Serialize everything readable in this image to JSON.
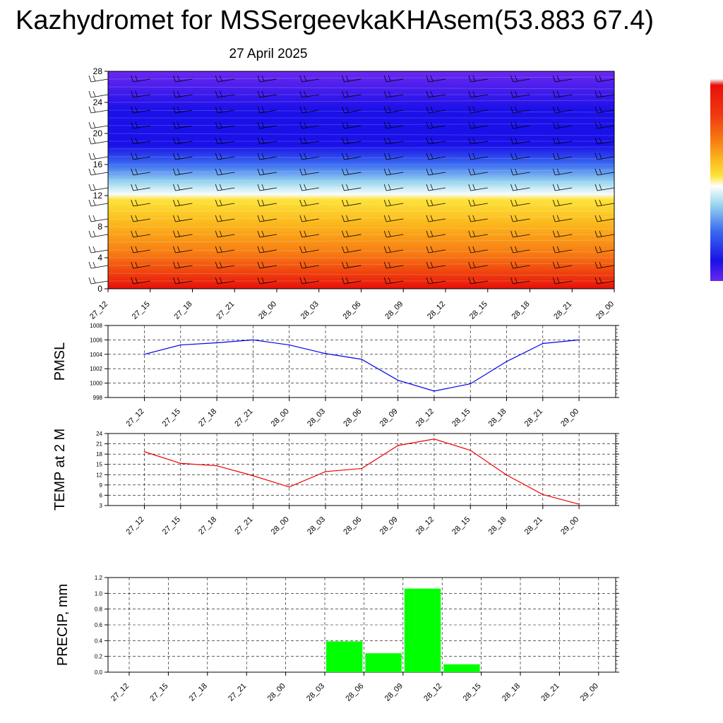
{
  "header": {
    "title": "Kazhydromet for MSSergeevkaKHAsem(53.883 67.4)",
    "subtitle": "27 April 2025"
  },
  "chart_data": [
    {
      "type": "heatmap",
      "title": "",
      "xlabel": "",
      "ylabel": "",
      "categories": [
        "27_12",
        "27_15",
        "27_18",
        "27_21",
        "28_00",
        "28_03",
        "28_06",
        "28_09",
        "28_12",
        "28_15",
        "28_18",
        "28_21",
        "29_00"
      ],
      "y_ticks": [
        0,
        4,
        8,
        12,
        16,
        20,
        24,
        28
      ],
      "ylim": [
        0,
        28
      ],
      "colors": {
        "bottom_hot": "#e8100a",
        "warm": "#f77a13",
        "mid_warm": "#fbb81c",
        "yellow": "#fde33a",
        "white": "#f8fcfc",
        "cyan": "#9ad7ef",
        "blue": "#3b6df0",
        "deep_blue": "#1a10e8",
        "violet": "#6a28f0"
      },
      "note_colorbar": "color scale bar on the right, unlabeled"
    },
    {
      "type": "line",
      "ylabel": "PMSL",
      "categories": [
        "27_12",
        "27_15",
        "27_18",
        "27_21",
        "28_00",
        "28_03",
        "28_06",
        "28_09",
        "28_12",
        "28_15",
        "28_18",
        "28_21",
        "29_00"
      ],
      "values": [
        1004.0,
        1005.3,
        1005.6,
        1006.0,
        1005.3,
        1004.1,
        1003.3,
        1000.4,
        998.9,
        999.9,
        1003.0,
        1005.5,
        1006.0
      ],
      "y_ticks": [
        998,
        1000,
        1002,
        1004,
        1006,
        1008
      ],
      "ylim": [
        998,
        1008
      ],
      "color": "#0000ee",
      "grid": true
    },
    {
      "type": "line",
      "ylabel": "TEMP at 2 M",
      "categories": [
        "27_12",
        "27_15",
        "27_18",
        "27_21",
        "28_00",
        "28_03",
        "28_06",
        "28_09",
        "28_12",
        "28_15",
        "28_18",
        "28_21",
        "29_00"
      ],
      "values": [
        18.7,
        15.3,
        14.6,
        11.7,
        8.4,
        12.9,
        13.8,
        20.5,
        22.4,
        19.1,
        11.9,
        6.2,
        3.4
      ],
      "y_ticks": [
        3,
        6,
        9,
        12,
        15,
        18,
        21,
        24
      ],
      "ylim": [
        3,
        24
      ],
      "color": "#ee0000",
      "grid": true
    },
    {
      "type": "bar",
      "ylabel": "PRECIP, mm",
      "categories": [
        "27_12",
        "27_15",
        "27_18",
        "27_21",
        "28_00",
        "28_03",
        "28_06",
        "28_09",
        "28_12",
        "28_15",
        "28_18",
        "28_21",
        "29_00"
      ],
      "values": [
        0,
        0,
        0,
        0,
        0,
        0,
        0.39,
        0.24,
        1.06,
        0.1,
        0,
        0,
        0
      ],
      "y_ticks": [
        "0.0",
        "0.2",
        "0.4",
        "0.6",
        "0.8",
        "1.0",
        "1.2"
      ],
      "ylim": [
        0,
        1.2
      ],
      "color": "#00ff00",
      "grid": true
    }
  ]
}
